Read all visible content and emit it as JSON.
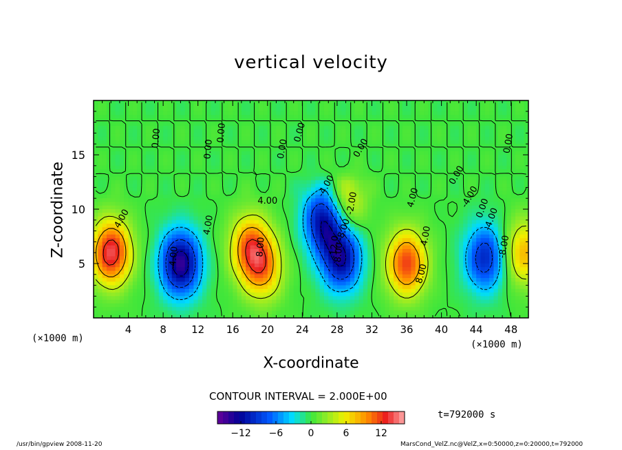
{
  "chart_data": {
    "type": "heatmap",
    "title": "vertical velocity",
    "xlabel": "X-coordinate",
    "ylabel": "Z-coordinate",
    "x_unit_label": "(×1000 m)",
    "xlim": [
      0,
      50
    ],
    "ylim": [
      0,
      20
    ],
    "x_ticks": [
      4,
      8,
      12,
      16,
      20,
      24,
      28,
      32,
      36,
      40,
      44,
      48
    ],
    "y_ticks": [
      5,
      10,
      15
    ],
    "colorbar": {
      "ticks": [
        -12,
        -6,
        0,
        6,
        12
      ],
      "range": [
        -16,
        16
      ]
    },
    "contour_interval_text": "CONTOUR INTERVAL = 2.000E+00",
    "time_text": "t=792000 s",
    "contour_labels": [
      "4.00",
      "4.00",
      "0.00",
      "0.00",
      "0.00",
      "4.00",
      "8.00",
      "0.00",
      "4.00",
      "8.00",
      "-4.00",
      "4.00",
      "8.00",
      "0.00",
      "-4.00",
      "0.00",
      "0.00",
      "-4.00",
      "-8.00",
      "-12.0",
      "-2.00",
      "0.00",
      "-4.00",
      "-8.00",
      "0.00"
    ],
    "cells": [
      {
        "x": 2.0,
        "z": 6.0,
        "w": 14
      },
      {
        "x": 10.0,
        "z": 5.0,
        "w": -14
      },
      {
        "x": 18.0,
        "z": 6.5,
        "w": 10
      },
      {
        "x": 19.5,
        "z": 4.5,
        "w": 8
      },
      {
        "x": 26.5,
        "z": 9.0,
        "w": -12
      },
      {
        "x": 28.5,
        "z": 5.5,
        "w": -12
      },
      {
        "x": 29.0,
        "z": 10.5,
        "w": 6
      },
      {
        "x": 36.0,
        "z": 5.0,
        "w": 12
      },
      {
        "x": 45.0,
        "z": 5.5,
        "w": -10
      },
      {
        "x": 49.5,
        "z": 6.0,
        "w": 8
      }
    ]
  },
  "footer": {
    "left": "/usr/bin/gpview   2008-11-20",
    "right": "MarsCond_VelZ.nc@VelZ,x=0:50000,z=0:20000,t=792000"
  }
}
